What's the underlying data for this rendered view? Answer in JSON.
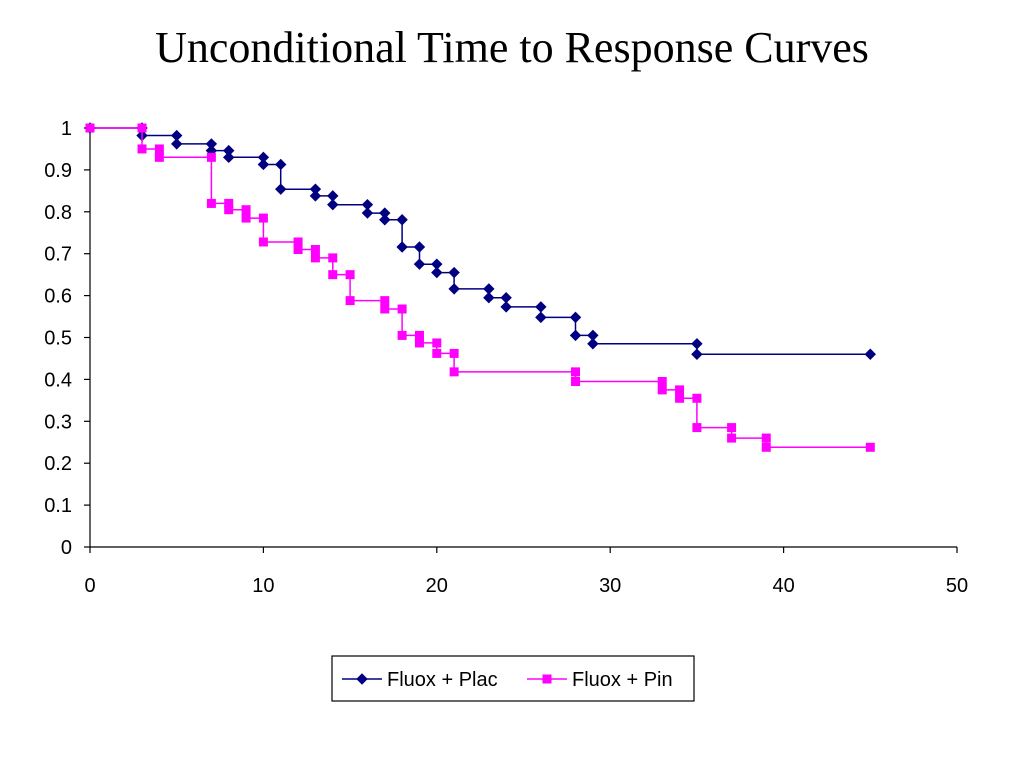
{
  "chart_data": {
    "type": "line",
    "title": "Unconditional Time to Response Curves",
    "xlabel": "",
    "ylabel": "",
    "xlim": [
      0,
      50
    ],
    "ylim": [
      0,
      1
    ],
    "x_ticks": [
      "0",
      "10",
      "20",
      "30",
      "40",
      "50"
    ],
    "y_ticks": [
      "0",
      "0.1",
      "0.2",
      "0.3",
      "0.4",
      "0.5",
      "0.6",
      "0.7",
      "0.8",
      "0.9",
      "1"
    ],
    "grid": false,
    "legend_position": "bottom",
    "step": true,
    "series": [
      {
        "name": "Fluox + Plac",
        "color": "#000080",
        "marker": "diamond",
        "points": [
          [
            0,
            1.0
          ],
          [
            3,
            1.0
          ],
          [
            3,
            0.982
          ],
          [
            5,
            0.982
          ],
          [
            5,
            0.962
          ],
          [
            7,
            0.962
          ],
          [
            7,
            0.946
          ],
          [
            8,
            0.946
          ],
          [
            8,
            0.93
          ],
          [
            10,
            0.93
          ],
          [
            10,
            0.913
          ],
          [
            11,
            0.913
          ],
          [
            11,
            0.854
          ],
          [
            13,
            0.854
          ],
          [
            13,
            0.838
          ],
          [
            14,
            0.838
          ],
          [
            14,
            0.817
          ],
          [
            16,
            0.817
          ],
          [
            16,
            0.797
          ],
          [
            17,
            0.797
          ],
          [
            17,
            0.781
          ],
          [
            18,
            0.781
          ],
          [
            18,
            0.716
          ],
          [
            19,
            0.716
          ],
          [
            19,
            0.675
          ],
          [
            20,
            0.675
          ],
          [
            20,
            0.655
          ],
          [
            21,
            0.655
          ],
          [
            21,
            0.616
          ],
          [
            23,
            0.616
          ],
          [
            23,
            0.595
          ],
          [
            24,
            0.595
          ],
          [
            24,
            0.573
          ],
          [
            26,
            0.573
          ],
          [
            26,
            0.548
          ],
          [
            28,
            0.548
          ],
          [
            28,
            0.505
          ],
          [
            29,
            0.505
          ],
          [
            29,
            0.485
          ],
          [
            35,
            0.485
          ],
          [
            35,
            0.46
          ],
          [
            45,
            0.46
          ]
        ]
      },
      {
        "name": "Fluox + Pin",
        "color": "#FF00FF",
        "marker": "square",
        "points": [
          [
            0,
            1.0
          ],
          [
            3,
            1.0
          ],
          [
            3,
            0.95
          ],
          [
            4,
            0.95
          ],
          [
            4,
            0.93
          ],
          [
            7,
            0.93
          ],
          [
            7,
            0.82
          ],
          [
            8,
            0.82
          ],
          [
            8,
            0.805
          ],
          [
            9,
            0.805
          ],
          [
            9,
            0.785
          ],
          [
            10,
            0.785
          ],
          [
            10,
            0.728
          ],
          [
            12,
            0.728
          ],
          [
            12,
            0.71
          ],
          [
            13,
            0.71
          ],
          [
            13,
            0.69
          ],
          [
            14,
            0.69
          ],
          [
            14,
            0.65
          ],
          [
            15,
            0.65
          ],
          [
            15,
            0.588
          ],
          [
            17,
            0.588
          ],
          [
            17,
            0.568
          ],
          [
            18,
            0.568
          ],
          [
            18,
            0.505
          ],
          [
            19,
            0.505
          ],
          [
            19,
            0.487
          ],
          [
            20,
            0.487
          ],
          [
            20,
            0.462
          ],
          [
            21,
            0.462
          ],
          [
            21,
            0.418
          ],
          [
            28,
            0.418
          ],
          [
            28,
            0.395
          ],
          [
            33,
            0.395
          ],
          [
            33,
            0.375
          ],
          [
            34,
            0.375
          ],
          [
            34,
            0.355
          ],
          [
            35,
            0.355
          ],
          [
            35,
            0.285
          ],
          [
            37,
            0.285
          ],
          [
            37,
            0.26
          ],
          [
            39,
            0.26
          ],
          [
            39,
            0.238
          ],
          [
            45,
            0.238
          ]
        ]
      }
    ]
  }
}
